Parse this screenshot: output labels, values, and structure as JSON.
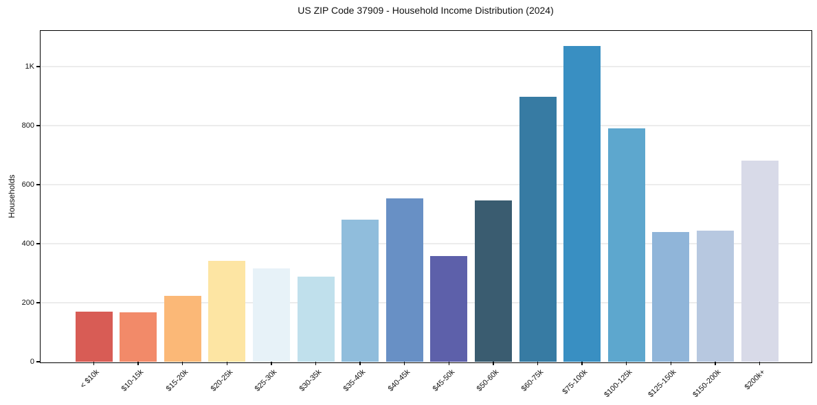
{
  "chart_data": {
    "type": "bar",
    "title": "US ZIP Code 37909 - Household Income Distribution (2024)",
    "xlabel": "",
    "ylabel": "Households",
    "categories": [
      "< $10k",
      "$10-15k",
      "$15-20k",
      "$20-25k",
      "$25-30k",
      "$30-35k",
      "$35-40k",
      "$40-45k",
      "$45-50k",
      "$50-60k",
      "$60-75k",
      "$75-100k",
      "$100-125k",
      "$125-150k",
      "$150-200k",
      "$200k+"
    ],
    "values": [
      170,
      168,
      224,
      341,
      317,
      289,
      481,
      553,
      359,
      546,
      897,
      1070,
      790,
      440,
      445,
      681
    ],
    "bar_colors": [
      "#d85c55",
      "#f28a69",
      "#fbb877",
      "#fde5a3",
      "#e7f2f8",
      "#c0e0ec",
      "#90bddc",
      "#6890c5",
      "#5d60aa",
      "#3a5c70",
      "#377ba3",
      "#398fc2",
      "#5da7ce",
      "#90b5d9",
      "#b7c8e0",
      "#d8dae8"
    ],
    "ylim": [
      0,
      1121
    ],
    "yticks": [
      {
        "value": 0,
        "label": "0"
      },
      {
        "value": 200,
        "label": "200"
      },
      {
        "value": 400,
        "label": "400"
      },
      {
        "value": 600,
        "label": "600"
      },
      {
        "value": 800,
        "label": "800"
      },
      {
        "value": 1000,
        "label": "1K"
      }
    ],
    "grid": "horizontal",
    "legend": "none",
    "colors": {
      "gridline": "#ececec",
      "spine": "#000000",
      "text": "#111111",
      "background": "#ffffff"
    }
  }
}
